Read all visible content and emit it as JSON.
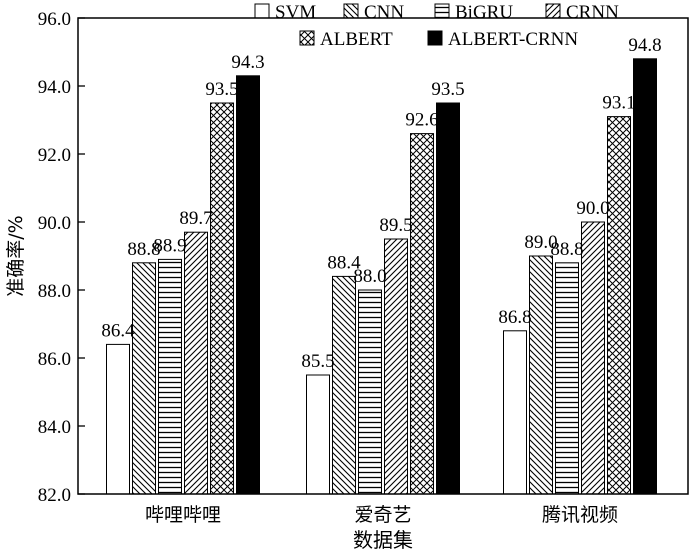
{
  "chart_data": {
    "type": "bar",
    "xlabel": "数据集",
    "ylabel": "准确率/%",
    "ylim": [
      82.0,
      96.0
    ],
    "yticks": [
      "82.0",
      "84.0",
      "86.0",
      "88.0",
      "90.0",
      "92.0",
      "94.0",
      "96.0"
    ],
    "categories": [
      "哔哩哔哩",
      "爱奇艺",
      "腾讯视频"
    ],
    "legend_position": "top-right",
    "series": [
      {
        "name": "SVM",
        "values": [
          86.4,
          85.5,
          86.8
        ],
        "pattern": "solid-white"
      },
      {
        "name": "CNN",
        "values": [
          88.8,
          88.4,
          89.0
        ],
        "pattern": "diagonal-back"
      },
      {
        "name": "BiGRU",
        "values": [
          88.9,
          88.0,
          88.8
        ],
        "pattern": "horizontal"
      },
      {
        "name": "CRNN",
        "values": [
          89.7,
          89.5,
          90.0
        ],
        "pattern": "diagonal-forward"
      },
      {
        "name": "ALBERT",
        "values": [
          93.5,
          92.6,
          93.1
        ],
        "pattern": "crosshatch"
      },
      {
        "name": "ALBERT-CRNN",
        "values": [
          94.3,
          93.5,
          94.8
        ],
        "pattern": "solid-black"
      }
    ],
    "value_labels": [
      [
        "86.4",
        "85.5",
        "86.8"
      ],
      [
        "88.8",
        "88.4",
        "89.0"
      ],
      [
        "88.9",
        "88.0",
        "88.8"
      ],
      [
        "89.7",
        "89.5",
        "90.0"
      ],
      [
        "93.5",
        "92.6",
        "93.1"
      ],
      [
        "94.3",
        "93.5",
        "94.8"
      ]
    ],
    "colors": {
      "stroke": "#000000",
      "fill_white": "#ffffff",
      "fill_black": "#000000"
    }
  }
}
